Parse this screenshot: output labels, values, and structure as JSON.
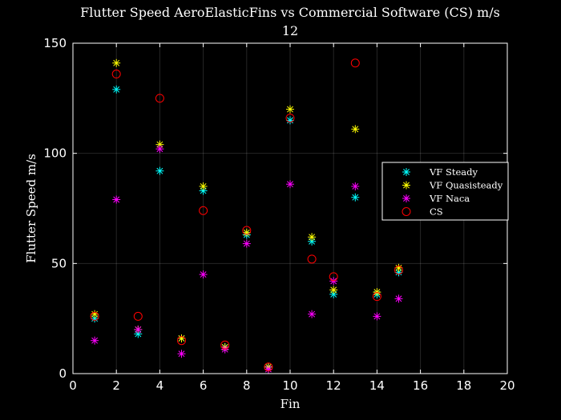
{
  "chart_data": {
    "type": "scatter",
    "title": "Flutter Speed AeroElasticFins vs Commercial Software (CS) m/s",
    "subtitle": "12",
    "xlabel": "Fin",
    "ylabel": "Flutter Speed m/s",
    "xlim": [
      0,
      20
    ],
    "ylim": [
      0,
      150
    ],
    "xticks": [
      0,
      2,
      4,
      6,
      8,
      10,
      12,
      14,
      16,
      18,
      20
    ],
    "yticks": [
      0,
      50,
      100,
      150
    ],
    "grid": true,
    "legend_position": "right",
    "background": "#000000",
    "series": [
      {
        "name": "VF Steady",
        "marker": "asterisk",
        "color": "#00ffff",
        "x": [
          1,
          2,
          3,
          4,
          5,
          6,
          7,
          8,
          9,
          10,
          11,
          12,
          13,
          14,
          15
        ],
        "y": [
          25,
          129,
          18,
          92,
          16,
          83,
          12,
          63,
          3,
          115,
          60,
          36,
          80,
          36,
          46
        ]
      },
      {
        "name": "VF Quasisteady",
        "marker": "asterisk",
        "color": "#ffff00",
        "x": [
          1,
          2,
          3,
          4,
          5,
          6,
          7,
          8,
          9,
          10,
          11,
          12,
          13,
          14,
          15
        ],
        "y": [
          27,
          141,
          20,
          104,
          16,
          85,
          12,
          64,
          3,
          120,
          62,
          38,
          111,
          37,
          48
        ]
      },
      {
        "name": "VF Naca",
        "marker": "asterisk",
        "color": "#ff00ff",
        "x": [
          1,
          2,
          3,
          4,
          5,
          6,
          7,
          8,
          9,
          10,
          11,
          12,
          13,
          14,
          15
        ],
        "y": [
          15,
          79,
          20,
          102,
          9,
          45,
          11,
          59,
          2,
          86,
          27,
          42,
          85,
          26,
          34
        ]
      },
      {
        "name": "CS",
        "marker": "circle",
        "color": "#ff0000",
        "x": [
          1,
          2,
          3,
          4,
          5,
          6,
          7,
          8,
          9,
          10,
          11,
          12,
          13,
          14,
          15
        ],
        "y": [
          26,
          136,
          26,
          125,
          15,
          74,
          13,
          65,
          3,
          116,
          52,
          44,
          141,
          35,
          47
        ]
      }
    ]
  }
}
